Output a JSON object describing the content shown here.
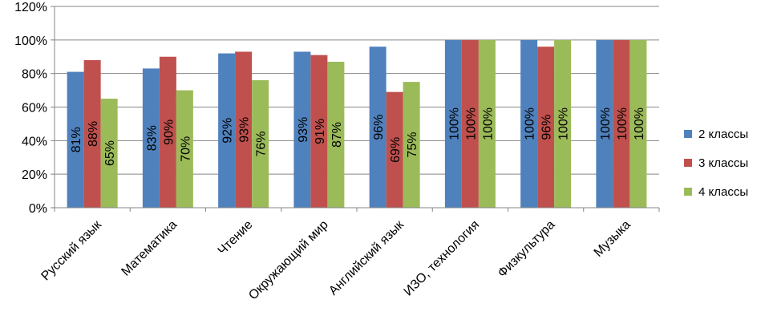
{
  "chart_data": {
    "type": "bar",
    "categories": [
      "Русский язык",
      "Математика",
      "Чтение",
      "Окружающий мир",
      "Английский язык",
      "ИЗО, технология",
      "Физкультура",
      "Музыка"
    ],
    "series": [
      {
        "name": "2 классы",
        "color": "#4F81BD",
        "values": [
          81,
          83,
          92,
          93,
          96,
          100,
          100,
          100
        ],
        "labels": [
          "81%",
          "83%",
          "92%",
          "93%",
          "96%",
          "100%",
          "100%",
          "100%"
        ]
      },
      {
        "name": "3 классы",
        "color": "#C0504D",
        "values": [
          88,
          90,
          93,
          91,
          69,
          100,
          96,
          100
        ],
        "labels": [
          "88%",
          "90%",
          "93%",
          "91%",
          "69%",
          "100%",
          "96%",
          "100%"
        ]
      },
      {
        "name": "4 классы",
        "color": "#9BBB59",
        "values": [
          65,
          70,
          76,
          87,
          75,
          100,
          100,
          100
        ],
        "labels": [
          "65%",
          "70%",
          "76%",
          "87%",
          "75%",
          "100%",
          "100%",
          "100%"
        ]
      }
    ],
    "y_ticks": [
      0,
      20,
      40,
      60,
      80,
      100,
      120
    ],
    "y_tick_labels": [
      "0%",
      "20%",
      "40%",
      "60%",
      "80%",
      "100%",
      "120%"
    ],
    "ylim": [
      0,
      120
    ],
    "grid": true,
    "legend_position": "right",
    "data_labels": "inside-rotated"
  }
}
